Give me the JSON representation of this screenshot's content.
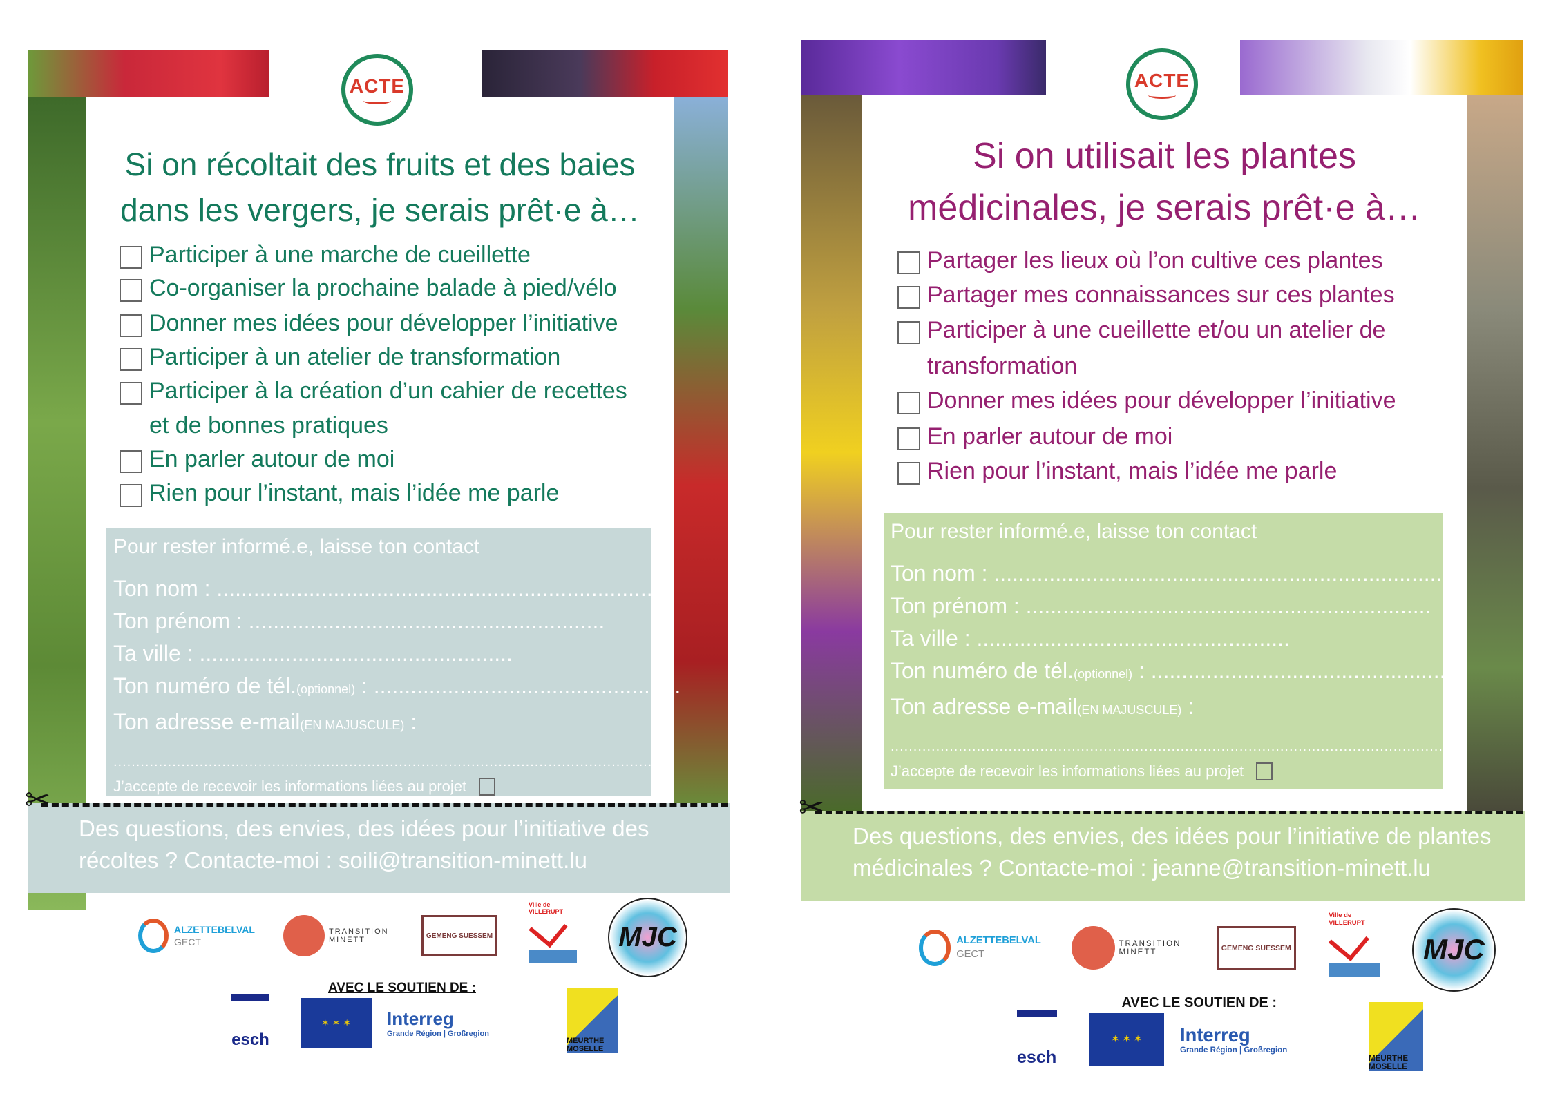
{
  "flyers": [
    {
      "accent": "#147a5c",
      "logo_text": "ACTE",
      "title_lines": [
        "Si on récoltait des fruits et des baies",
        "dans les vergers, je serais prêt·e à…"
      ],
      "items": [
        "Participer à une marche de cueillette",
        "Co-organiser la prochaine balade à pied/vélo",
        "Donner mes idées pour développer l’initiative",
        "Participer à un atelier de transformation",
        "Participer à la création d’un cahier de recettes",
        "et de bonnes pratiques",
        "En parler autour de moi",
        "Rien pour l’instant, mais l’idée me parle"
      ],
      "contact": {
        "color": "#c7d8d8",
        "header": "Pour rester informé.e, laisse ton contact",
        "nom": "Ton nom : ..........................................................................",
        "prenom": "Ton prénom : ..........................................................",
        "ville": "Ta ville : ...................................................",
        "tel_label": "Ton numéro de tél.",
        "tel_note": "(optionnel)",
        "tel_dots": " : ..................................................",
        "email_label": "Ton adresse e-mail",
        "email_note": "(EN MAJUSCULE)",
        "email_colon": " :",
        "email_dots": "............................................................................................................................",
        "accept": "J’accepte de recevoir les informations liées au projet"
      },
      "band_lines": [
        "Des questions, des envies, des idées pour l’initiative des",
        "récoltes ? Contacte-moi : soili@transition-minett.lu"
      ]
    },
    {
      "accent": "#962070",
      "logo_text": "ACTE",
      "title_lines": [
        "Si on utilisait les plantes",
        "médicinales, je serais prêt·e à…"
      ],
      "items": [
        "Partager les lieux où l’on cultive ces plantes",
        "Partager mes connaissances sur ces plantes",
        "Participer à une cueillette et/ou un atelier de",
        "transformation",
        "Donner mes idées pour développer l’initiative",
        "En parler autour de moi",
        "Rien pour l’instant, mais l’idée me parle"
      ],
      "contact": {
        "color": "#c5dca8",
        "header": "Pour rester informé.e, laisse ton contact",
        "nom": "Ton nom : ..........................................................................",
        "prenom": "Ton prénom : ..................................................................",
        "ville": "Ta ville : ...................................................",
        "tel_label": "Ton numéro de tél.",
        "tel_note": "(optionnel)",
        "tel_dots": " : ..................................................",
        "email_label": "Ton adresse e-mail",
        "email_note": "(EN MAJUSCULE)",
        "email_colon": " :",
        "email_dots": "..............................................................................................................................",
        "accept": "J’accepte de recevoir les informations liées au projet"
      },
      "band_lines": [
        "Des questions, des envies, des idées pour l’initiative de plantes",
        "médicinales ? Contacte-moi : jeanne@transition-minett.lu"
      ]
    }
  ],
  "partners": {
    "alzette": "ALZETTEBELVAL",
    "gect": "GECT",
    "transition": "TRANSITION MINETT",
    "gemeng": "GEMENG SUESSEM",
    "villerupt": "Ville de VILLERUPT",
    "mjc": "MJC",
    "support_label": "AVEC LE SOUTIEN DE :",
    "esch": "esch",
    "interreg": "Interreg",
    "interreg_sub": "Grande Région | Großregion",
    "meurthe": "MEURTHE MOSELLE"
  }
}
